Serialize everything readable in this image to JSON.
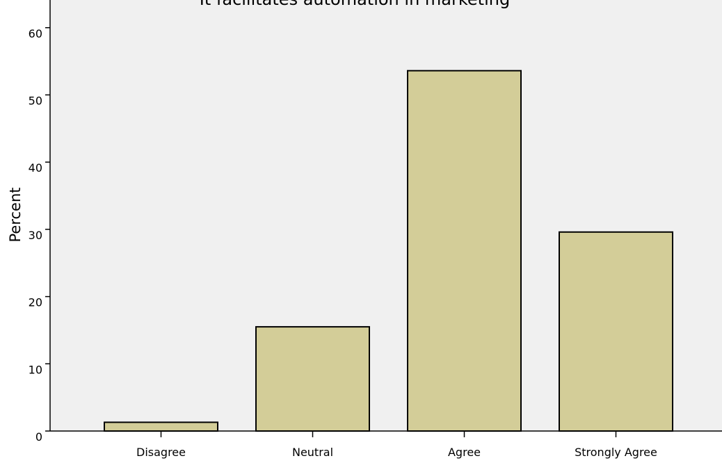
{
  "chart_data": {
    "type": "bar",
    "title": "It facilitates automation in marketing",
    "xlabel": "",
    "ylabel": "Percent",
    "categories": [
      "Disagree",
      "Neutral",
      "Agree",
      "Strongly Agree"
    ],
    "values": [
      1.3,
      15.5,
      53.6,
      29.6
    ],
    "ylim": [
      0,
      60
    ],
    "yticks": [
      0,
      10,
      20,
      30,
      40,
      50,
      60
    ],
    "grid": false,
    "colors": {
      "bar_fill": "#d3cd98",
      "bar_stroke": "#000000",
      "plot_background": "#f0f0f0",
      "page_background": "#ffffff"
    }
  }
}
